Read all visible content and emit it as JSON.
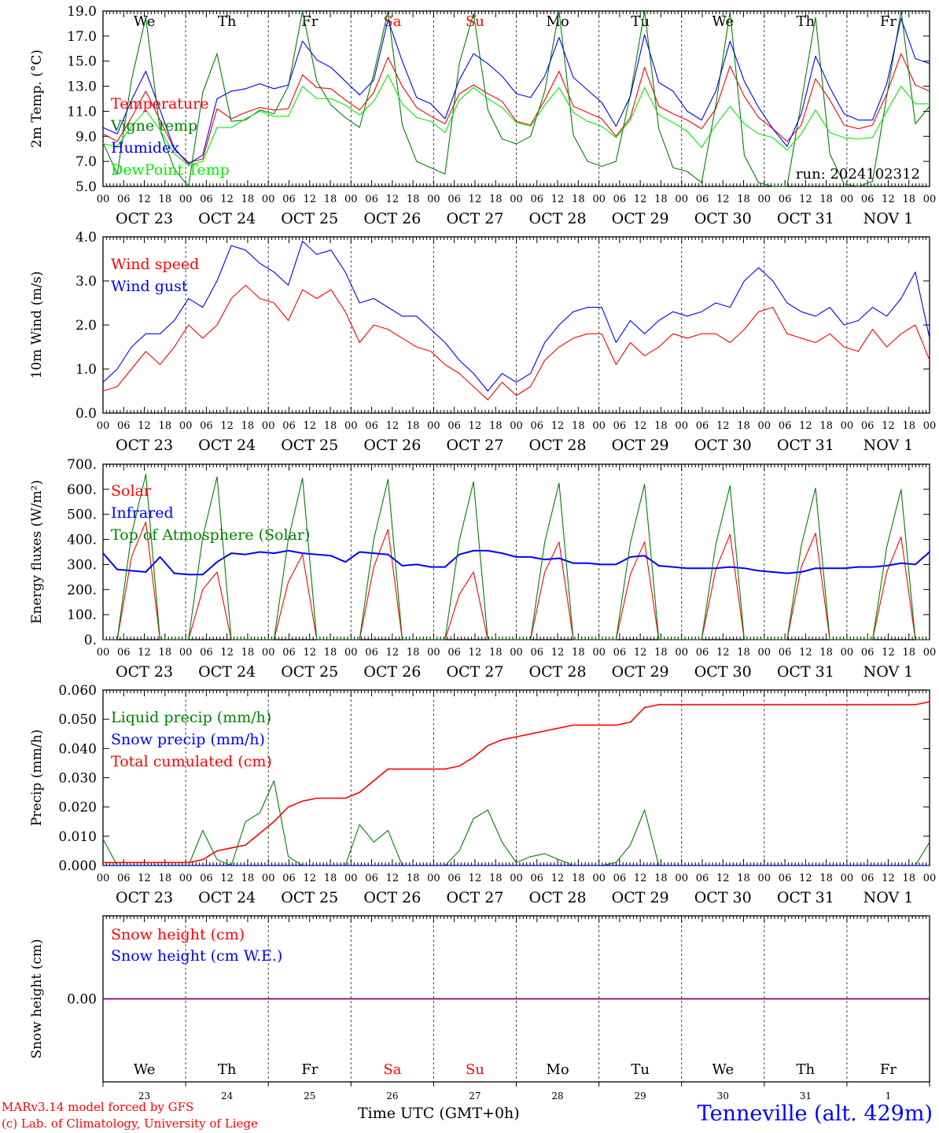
{
  "days": [
    {
      "dow": "We",
      "date": "OCT 23",
      "num": "23",
      "weekend": false
    },
    {
      "dow": "Th",
      "date": "OCT 24",
      "num": "24",
      "weekend": false
    },
    {
      "dow": "Fr",
      "date": "OCT 25",
      "num": "25",
      "weekend": false
    },
    {
      "dow": "Sa",
      "date": "OCT 26",
      "num": "26",
      "weekend": true
    },
    {
      "dow": "Su",
      "date": "OCT 27",
      "num": "27",
      "weekend": true
    },
    {
      "dow": "Mo",
      "date": "OCT 28",
      "num": "28",
      "weekend": false
    },
    {
      "dow": "Tu",
      "date": "OCT 29",
      "num": "29",
      "weekend": false
    },
    {
      "dow": "We",
      "date": "OCT 30",
      "num": "30",
      "weekend": false
    },
    {
      "dow": "Th",
      "date": "OCT 31",
      "num": "31",
      "weekend": false
    },
    {
      "dow": "Fr",
      "date": "NOV  1",
      "num": "1",
      "weekend": false
    }
  ],
  "hour_ticks": [
    "00",
    "06",
    "12",
    "18"
  ],
  "colors": {
    "red": "#ff0000",
    "green": "#008000",
    "blue": "#0000ff",
    "lightgreen": "#00ee00",
    "purple": "#800080"
  },
  "chart_data": [
    {
      "type": "line",
      "ylabel": "2m Temp. (°C)",
      "ylim": [
        5.0,
        19.0
      ],
      "yticks": [
        "5.0",
        "7.0",
        "9.0",
        "11.0",
        "13.0",
        "15.0",
        "17.0",
        "19.0"
      ],
      "show_dow": true,
      "annotation": "run: 2024102312",
      "series": [
        {
          "name": "Temperature",
          "color": "red",
          "values": [
            9.2,
            8.6,
            10.5,
            12.6,
            10.3,
            8.0,
            6.9,
            7.2,
            11.2,
            10.4,
            10.9,
            11.3,
            11.1,
            11.2,
            13.9,
            12.9,
            12.8,
            11.9,
            11.1,
            12.5,
            15.3,
            13.0,
            11.3,
            10.6,
            10.0,
            12.4,
            13.1,
            12.4,
            11.8,
            10.2,
            9.9,
            11.9,
            14.2,
            11.4,
            10.9,
            10.4,
            9.0,
            10.5,
            14.5,
            11.4,
            10.8,
            10.3,
            9.6,
            11.2,
            14.6,
            12.2,
            10.5,
            9.6,
            8.6,
            9.9,
            13.6,
            11.9,
            9.9,
            9.6,
            9.9,
            12.4,
            15.6,
            13.1,
            12.6
          ]
        },
        {
          "name": "Vigne temp",
          "color": "green",
          "values": [
            8.5,
            6.0,
            13.5,
            18.5,
            9.5,
            6.4,
            4.8,
            12.5,
            15.6,
            10.2,
            10.3,
            11.1,
            10.8,
            13.0,
            19.0,
            13.4,
            11.5,
            10.5,
            9.7,
            14.0,
            19.0,
            9.9,
            7.0,
            6.5,
            6.0,
            14.8,
            18.8,
            11.1,
            8.8,
            8.4,
            9.0,
            12.6,
            19.0,
            9.1,
            7.0,
            6.6,
            7.0,
            12.3,
            19.0,
            9.6,
            6.5,
            6.2,
            5.3,
            11.5,
            19.0,
            7.5,
            5.3,
            5.0,
            5.0,
            11.7,
            18.5,
            7.6,
            5.2,
            5.0,
            5.4,
            12.2,
            19.0,
            10.0,
            11.4
          ]
        },
        {
          "name": "Humidex",
          "color": "blue",
          "values": [
            9.7,
            9.2,
            11.9,
            14.2,
            11.1,
            8.0,
            6.8,
            7.5,
            12.0,
            12.6,
            12.8,
            13.2,
            12.8,
            13.1,
            16.6,
            15.1,
            14.5,
            13.4,
            12.3,
            13.5,
            18.3,
            15.0,
            12.1,
            11.6,
            10.4,
            13.5,
            15.6,
            14.8,
            13.8,
            12.4,
            12.1,
            13.8,
            16.9,
            13.7,
            12.7,
            11.7,
            9.8,
            12.2,
            17.1,
            13.3,
            12.6,
            11.0,
            10.3,
            12.6,
            16.6,
            13.4,
            11.3,
            9.6,
            8.2,
            10.8,
            15.4,
            12.9,
            10.8,
            10.3,
            10.3,
            13.2,
            18.4,
            15.2,
            14.8
          ]
        },
        {
          "name": "DewPoint Temp",
          "color": "lightgreen",
          "values": [
            8.4,
            8.2,
            9.8,
            11.1,
            9.5,
            7.6,
            6.7,
            7.0,
            9.7,
            9.7,
            10.4,
            11.0,
            10.6,
            10.6,
            13.0,
            12.0,
            12.0,
            11.5,
            10.7,
            11.8,
            13.9,
            11.6,
            10.5,
            10.2,
            9.3,
            11.9,
            12.9,
            12.0,
            11.3,
            10.1,
            9.8,
            11.5,
            12.9,
            10.9,
            10.2,
            9.8,
            8.9,
            10.3,
            12.9,
            10.7,
            10.1,
            9.4,
            8.1,
            9.9,
            11.4,
            10.0,
            9.2,
            8.9,
            7.9,
            9.2,
            11.1,
            9.3,
            8.9,
            8.8,
            8.9,
            11.0,
            13.0,
            11.6,
            11.6
          ]
        }
      ]
    },
    {
      "type": "line",
      "ylabel": "10m Wind (m/s)",
      "ylim": [
        0.0,
        4.0
      ],
      "yticks": [
        "0.0",
        "1.0",
        "2.0",
        "3.0",
        "4.0"
      ],
      "series": [
        {
          "name": "Wind speed",
          "color": "red",
          "values": [
            0.5,
            0.6,
            1.0,
            1.4,
            1.1,
            1.5,
            2.0,
            1.7,
            2.0,
            2.6,
            2.9,
            2.6,
            2.5,
            2.1,
            2.8,
            2.6,
            2.8,
            2.3,
            1.6,
            2.0,
            1.9,
            1.7,
            1.5,
            1.4,
            1.1,
            0.9,
            0.6,
            0.3,
            0.7,
            0.4,
            0.6,
            1.2,
            1.5,
            1.7,
            1.8,
            1.8,
            1.1,
            1.6,
            1.3,
            1.5,
            1.8,
            1.7,
            1.8,
            1.8,
            1.6,
            1.9,
            2.3,
            2.4,
            1.8,
            1.7,
            1.6,
            1.8,
            1.5,
            1.4,
            1.9,
            1.5,
            1.8,
            2.0,
            1.2
          ]
        },
        {
          "name": "Wind gust",
          "color": "blue",
          "values": [
            0.7,
            1.0,
            1.5,
            1.8,
            1.8,
            2.1,
            2.6,
            2.4,
            3.0,
            3.8,
            3.7,
            3.4,
            3.2,
            2.9,
            3.9,
            3.6,
            3.7,
            3.2,
            2.5,
            2.6,
            2.4,
            2.2,
            2.2,
            1.9,
            1.6,
            1.2,
            0.9,
            0.5,
            0.9,
            0.7,
            0.9,
            1.6,
            2.0,
            2.3,
            2.4,
            2.4,
            1.6,
            2.1,
            1.8,
            2.1,
            2.3,
            2.2,
            2.3,
            2.5,
            2.4,
            3.0,
            3.3,
            3.0,
            2.5,
            2.3,
            2.2,
            2.4,
            2.0,
            2.1,
            2.4,
            2.2,
            2.6,
            3.2,
            1.7
          ]
        }
      ]
    },
    {
      "type": "line",
      "ylabel": "Energy fluxes (W/m²)",
      "ylim": [
        0,
        700
      ],
      "yticks": [
        "0.",
        "100.",
        "200.",
        "300.",
        "400.",
        "500.",
        "600.",
        "700."
      ],
      "series": [
        {
          "name": "Solar",
          "color": "red",
          "values": [
            0,
            0,
            330,
            470,
            0,
            0,
            0,
            200,
            270,
            0,
            0,
            0,
            0,
            230,
            340,
            0,
            0,
            0,
            0,
            290,
            440,
            0,
            0,
            0,
            0,
            180,
            270,
            0,
            0,
            0,
            0,
            270,
            390,
            0,
            0,
            0,
            0,
            260,
            390,
            0,
            0,
            0,
            0,
            280,
            420,
            0,
            0,
            0,
            0,
            290,
            425,
            0,
            0,
            0,
            0,
            270,
            410,
            0,
            0
          ]
        },
        {
          "name": "Infrared",
          "color": "blue",
          "values": [
            345,
            280,
            275,
            270,
            330,
            265,
            260,
            260,
            310,
            345,
            340,
            350,
            345,
            355,
            345,
            340,
            335,
            310,
            350,
            345,
            340,
            295,
            300,
            290,
            290,
            340,
            355,
            355,
            345,
            330,
            330,
            320,
            325,
            305,
            305,
            300,
            300,
            330,
            335,
            295,
            290,
            285,
            285,
            285,
            290,
            285,
            275,
            270,
            265,
            270,
            285,
            285,
            285,
            290,
            290,
            295,
            305,
            300,
            350
          ]
        },
        {
          "name": "Top of Atmosphere (Solar)",
          "color": "green",
          "values": [
            0,
            0,
            420,
            660,
            0,
            0,
            0,
            410,
            650,
            0,
            0,
            0,
            0,
            400,
            645,
            0,
            0,
            0,
            0,
            400,
            640,
            0,
            0,
            0,
            0,
            395,
            630,
            0,
            0,
            0,
            0,
            390,
            625,
            0,
            0,
            0,
            0,
            385,
            620,
            0,
            0,
            0,
            0,
            380,
            615,
            0,
            0,
            0,
            0,
            375,
            605,
            0,
            0,
            0,
            0,
            370,
            600,
            0,
            0
          ]
        }
      ]
    },
    {
      "type": "line",
      "ylabel": "Precip (mm/h)",
      "ylim": [
        0.0,
        0.06
      ],
      "yticks": [
        "0.000",
        "0.010",
        "0.020",
        "0.030",
        "0.040",
        "0.050",
        "0.060"
      ],
      "series": [
        {
          "name": "Liquid precip (mm/h)",
          "color": "green",
          "values": [
            0.009,
            0,
            0,
            0,
            0,
            0,
            0,
            0.012,
            0.002,
            0,
            0.015,
            0.018,
            0.029,
            0.003,
            0,
            0,
            0,
            0,
            0.014,
            0.008,
            0.012,
            0,
            0,
            0,
            0,
            0.005,
            0.016,
            0.019,
            0.008,
            0.001,
            0.003,
            0.004,
            0.002,
            0,
            0,
            0,
            0.001,
            0.007,
            0.019,
            0,
            0,
            0,
            0,
            0,
            0,
            0,
            0,
            0,
            0,
            0,
            0,
            0,
            0,
            0,
            0,
            0,
            0,
            0,
            0.008
          ]
        },
        {
          "name": "Snow precip (mm/h)",
          "color": "blue",
          "values": [
            0,
            0,
            0,
            0,
            0,
            0,
            0,
            0,
            0,
            0,
            0,
            0,
            0,
            0,
            0,
            0,
            0,
            0,
            0,
            0,
            0,
            0,
            0,
            0,
            0,
            0,
            0,
            0,
            0,
            0,
            0,
            0,
            0,
            0,
            0,
            0,
            0,
            0,
            0,
            0,
            0,
            0,
            0,
            0,
            0,
            0,
            0,
            0,
            0,
            0,
            0,
            0,
            0,
            0,
            0,
            0,
            0,
            0,
            0
          ]
        },
        {
          "name": "Total cumulated (cm)",
          "color": "red",
          "values": [
            0.001,
            0.001,
            0.001,
            0.001,
            0.001,
            0.001,
            0.001,
            0.002,
            0.005,
            0.006,
            0.007,
            0.011,
            0.015,
            0.02,
            0.022,
            0.023,
            0.023,
            0.023,
            0.025,
            0.029,
            0.033,
            0.033,
            0.033,
            0.033,
            0.033,
            0.034,
            0.037,
            0.041,
            0.043,
            0.044,
            0.045,
            0.046,
            0.047,
            0.048,
            0.048,
            0.048,
            0.048,
            0.049,
            0.054,
            0.055,
            0.055,
            0.055,
            0.055,
            0.055,
            0.055,
            0.055,
            0.055,
            0.055,
            0.055,
            0.055,
            0.055,
            0.055,
            0.055,
            0.055,
            0.055,
            0.055,
            0.055,
            0.055,
            0.056
          ]
        }
      ]
    },
    {
      "type": "line",
      "ylabel": "Snow height (cm)",
      "ylim": [
        -1.0,
        1.0
      ],
      "yticks": [
        "0.00"
      ],
      "show_dow_bottom": true,
      "series": [
        {
          "name": "Snow height (cm)",
          "color": "red",
          "values": [
            0,
            0
          ]
        },
        {
          "name": "Snow height (cm W.E.)",
          "color": "blue",
          "values": [
            0,
            0
          ]
        }
      ]
    }
  ],
  "footer": {
    "credit1": "MARv3.14 model forced by GFS",
    "credit2": "(c) Lab. of Climatology, University of Liege",
    "xlabel": "Time UTC (GMT+0h)",
    "location": "Tenneville (alt. 429m)"
  }
}
